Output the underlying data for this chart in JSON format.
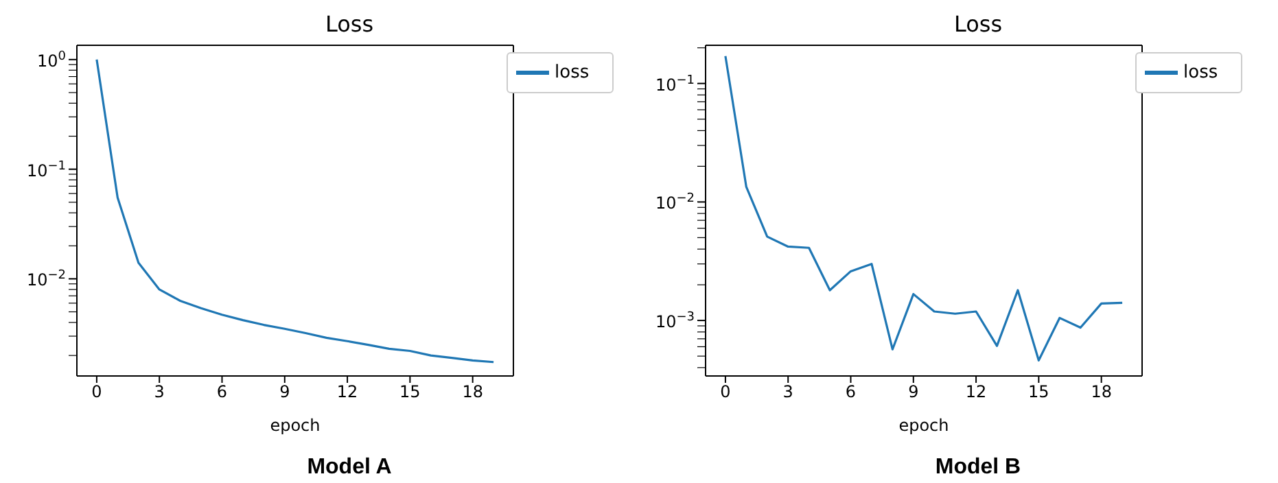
{
  "chart_data": [
    {
      "type": "line",
      "title": "Loss",
      "xlabel": "epoch",
      "annotations": [
        "Model A"
      ],
      "x": [
        0,
        1,
        2,
        3,
        4,
        5,
        6,
        7,
        8,
        9,
        10,
        11,
        12,
        13,
        14,
        15,
        16,
        17,
        18,
        19
      ],
      "series": [
        {
          "name": "loss",
          "color": "#1f77b4",
          "values": [
            1.0,
            0.055,
            0.014,
            0.008,
            0.0063,
            0.0054,
            0.0047,
            0.0042,
            0.0038,
            0.0035,
            0.0032,
            0.0029,
            0.0027,
            0.0025,
            0.0023,
            0.0022,
            0.002,
            0.0019,
            0.0018,
            0.00174
          ]
        }
      ],
      "log": "y",
      "xlim": [
        -0.95,
        19.95
      ],
      "xticks": [
        0,
        3,
        6,
        9,
        12,
        15,
        18
      ],
      "ylim": [
        0.0013,
        1.35
      ],
      "yticks": [
        {
          "value": 0.002,
          "label": null
        },
        {
          "value": 0.003,
          "label": null
        },
        {
          "value": 0.004,
          "label": null
        },
        {
          "value": 0.005,
          "label": null
        },
        {
          "value": 0.006,
          "label": null
        },
        {
          "value": 0.007,
          "label": null
        },
        {
          "value": 0.008,
          "label": null
        },
        {
          "value": 0.009,
          "label": null
        },
        {
          "value": 0.01,
          "label": "10$^{−2}$"
        },
        {
          "value": 0.02,
          "label": null
        },
        {
          "value": 0.03,
          "label": null
        },
        {
          "value": 0.04,
          "label": null
        },
        {
          "value": 0.05,
          "label": null
        },
        {
          "value": 0.06,
          "label": null
        },
        {
          "value": 0.07,
          "label": null
        },
        {
          "value": 0.08,
          "label": null
        },
        {
          "value": 0.09,
          "label": null
        },
        {
          "value": 0.1,
          "label": "10$^{−1}$"
        },
        {
          "value": 0.2,
          "label": null
        },
        {
          "value": 0.3,
          "label": null
        },
        {
          "value": 0.4,
          "label": null
        },
        {
          "value": 0.5,
          "label": null
        },
        {
          "value": 0.6,
          "label": null
        },
        {
          "value": 0.7,
          "label": null
        },
        {
          "value": 0.8,
          "label": null
        },
        {
          "value": 0.9,
          "label": null
        },
        {
          "value": 1,
          "label": "10$^{0}$"
        }
      ],
      "legend": "top right",
      "marker": "none",
      "line_style": "solid",
      "grid": false
    },
    {
      "type": "line",
      "title": "Loss",
      "xlabel": "epoch",
      "annotations": [
        "Model B"
      ],
      "x": [
        0,
        1,
        2,
        3,
        4,
        5,
        6,
        7,
        8,
        9,
        10,
        11,
        12,
        13,
        14,
        15,
        16,
        17,
        18,
        19
      ],
      "series": [
        {
          "name": "loss",
          "color": "#1f77b4",
          "values": [
            0.17,
            0.0134,
            0.0051,
            0.0042,
            0.0041,
            0.0018,
            0.0026,
            0.003,
            0.00057,
            0.00167,
            0.00119,
            0.00114,
            0.00119,
            0.00061,
            0.0018,
            0.00046,
            0.00105,
            0.00087,
            0.00139,
            0.00141
          ]
        }
      ],
      "log": "y",
      "xlim": [
        -0.95,
        19.95
      ],
      "xticks": [
        0,
        3,
        6,
        9,
        12,
        15,
        18
      ],
      "ylim": [
        0.00034,
        0.21
      ],
      "yticks": [
        {
          "value": 0.0004,
          "label": null
        },
        {
          "value": 0.0005,
          "label": null
        },
        {
          "value": 0.0006,
          "label": null
        },
        {
          "value": 0.0007,
          "label": null
        },
        {
          "value": 0.0008,
          "label": null
        },
        {
          "value": 0.0009,
          "label": null
        },
        {
          "value": 0.001,
          "label": "10$^{−3}$"
        },
        {
          "value": 0.002,
          "label": null
        },
        {
          "value": 0.003,
          "label": null
        },
        {
          "value": 0.004,
          "label": null
        },
        {
          "value": 0.005,
          "label": null
        },
        {
          "value": 0.006,
          "label": null
        },
        {
          "value": 0.007,
          "label": null
        },
        {
          "value": 0.008,
          "label": null
        },
        {
          "value": 0.009,
          "label": null
        },
        {
          "value": 0.01,
          "label": "10$^{−2}$"
        },
        {
          "value": 0.02,
          "label": null
        },
        {
          "value": 0.03,
          "label": null
        },
        {
          "value": 0.04,
          "label": null
        },
        {
          "value": 0.05,
          "label": null
        },
        {
          "value": 0.06,
          "label": null
        },
        {
          "value": 0.07,
          "label": null
        },
        {
          "value": 0.08,
          "label": null
        },
        {
          "value": 0.09,
          "label": null
        },
        {
          "value": 0.1,
          "label": "10$^{−1}$"
        },
        {
          "value": 0.2,
          "label": null
        }
      ],
      "legend": "top right",
      "marker": "none",
      "line_style": "solid",
      "grid": false
    }
  ]
}
